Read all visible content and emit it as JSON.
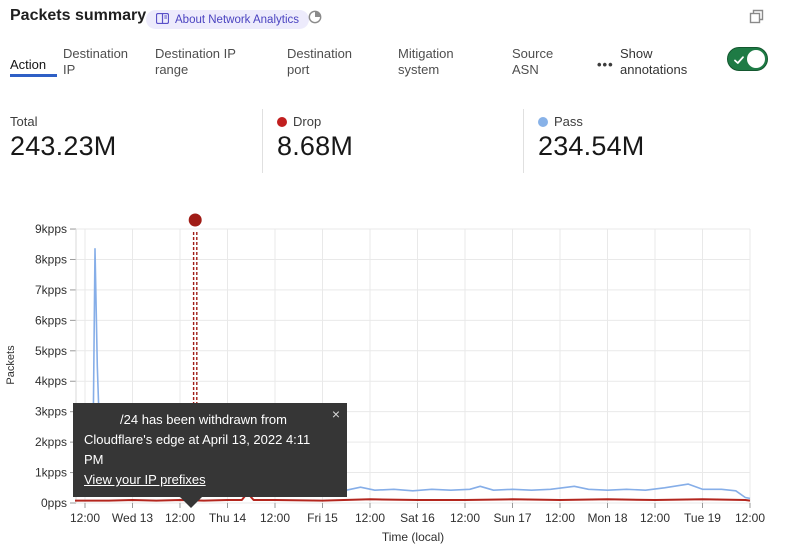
{
  "header": {
    "title": "Packets summary",
    "about_badge": "About Network Analytics"
  },
  "tabs": {
    "items": [
      {
        "label": "Action",
        "active": true
      },
      {
        "label": "Destination IP",
        "active": false
      },
      {
        "label": "Destination IP range",
        "active": false
      },
      {
        "label": "Destination port",
        "active": false
      },
      {
        "label": "Mitigation system",
        "active": false
      },
      {
        "label": "Source ASN",
        "active": false
      }
    ],
    "more_label": "•••"
  },
  "annotations_toggle": {
    "label": "Show annotations",
    "state": "on"
  },
  "stats": {
    "total": {
      "label": "Total",
      "value": "243.23M"
    },
    "drop": {
      "label": "Drop",
      "value": "8.68M",
      "dot_color": "#c11f1f"
    },
    "pass": {
      "label": "Pass",
      "value": "234.54M",
      "dot_color": "#88b2e8"
    }
  },
  "tooltip": {
    "line1": "/24 has been withdrawn from",
    "line2": "Cloudflare's edge at April 13, 2022 4:11 PM",
    "link_label": "View your IP prefixes",
    "close_label": "×"
  },
  "chart_data": {
    "type": "line",
    "xlabel": "Time (local)",
    "ylabel": "Packets",
    "x_ticks": [
      "12:00",
      "Wed 13",
      "12:00",
      "Thu 14",
      "12:00",
      "Fri 15",
      "12:00",
      "Sat 16",
      "12:00",
      "Sun 17",
      "12:00",
      "Mon 18",
      "12:00",
      "Tue 19",
      "12:00"
    ],
    "y_ticks": [
      "0pps",
      "1kpps",
      "2kpps",
      "3kpps",
      "4kpps",
      "5kpps",
      "6kpps",
      "7kpps",
      "8kpps",
      "9kpps"
    ],
    "ylim": [
      0,
      9
    ],
    "y_unit": "kpps",
    "grid": true,
    "series": [
      {
        "name": "Pass",
        "color": "#86aee8",
        "width": 1.6,
        "points": [
          [
            -0.21,
            0.3
          ],
          [
            0.1,
            0.32
          ],
          [
            0.16,
            0.5
          ],
          [
            0.21,
            8.35
          ],
          [
            0.26,
            4.5
          ],
          [
            0.33,
            1.2
          ],
          [
            0.45,
            0.55
          ],
          [
            0.8,
            0.42
          ],
          [
            1.2,
            0.42
          ],
          [
            1.42,
            0.65
          ],
          [
            1.55,
            0.5
          ],
          [
            1.65,
            0.68
          ],
          [
            1.8,
            0.45
          ],
          [
            2.1,
            0.42
          ],
          [
            2.32,
            0.45
          ],
          [
            2.6,
            0.4
          ],
          [
            3.0,
            0.42
          ],
          [
            3.4,
            0.45
          ],
          [
            3.7,
            0.4
          ],
          [
            4.0,
            0.62
          ],
          [
            4.25,
            0.45
          ],
          [
            4.7,
            0.4
          ],
          [
            5.1,
            0.45
          ],
          [
            5.5,
            0.42
          ],
          [
            5.8,
            0.52
          ],
          [
            6.1,
            0.42
          ],
          [
            6.5,
            0.45
          ],
          [
            6.9,
            0.4
          ],
          [
            7.3,
            0.45
          ],
          [
            7.7,
            0.42
          ],
          [
            8.1,
            0.45
          ],
          [
            8.32,
            0.55
          ],
          [
            8.6,
            0.42
          ],
          [
            9.0,
            0.45
          ],
          [
            9.4,
            0.42
          ],
          [
            9.8,
            0.45
          ],
          [
            10.3,
            0.55
          ],
          [
            10.6,
            0.45
          ],
          [
            11.0,
            0.42
          ],
          [
            11.4,
            0.45
          ],
          [
            11.8,
            0.42
          ],
          [
            12.2,
            0.5
          ],
          [
            12.7,
            0.62
          ],
          [
            13.0,
            0.45
          ],
          [
            13.4,
            0.45
          ],
          [
            13.7,
            0.4
          ],
          [
            13.9,
            0.18
          ],
          [
            14.0,
            0.15
          ]
        ]
      },
      {
        "name": "Drop",
        "color": "#b3261e",
        "width": 2,
        "points": [
          [
            -0.21,
            0.08
          ],
          [
            0.5,
            0.08
          ],
          [
            1.0,
            0.1
          ],
          [
            1.5,
            0.08
          ],
          [
            2.0,
            0.1
          ],
          [
            2.5,
            0.08
          ],
          [
            3.0,
            0.1
          ],
          [
            3.3,
            0.1
          ],
          [
            3.42,
            0.33
          ],
          [
            3.55,
            0.1
          ],
          [
            4.0,
            0.1
          ],
          [
            5.0,
            0.08
          ],
          [
            6.0,
            0.12
          ],
          [
            7.0,
            0.1
          ],
          [
            8.0,
            0.1
          ],
          [
            9.0,
            0.12
          ],
          [
            10.0,
            0.1
          ],
          [
            11.0,
            0.12
          ],
          [
            12.0,
            0.1
          ],
          [
            13.0,
            0.12
          ],
          [
            13.9,
            0.1
          ],
          [
            14.0,
            0.08
          ]
        ]
      }
    ],
    "annotation": {
      "x": 2.32,
      "color": "#a01c16",
      "label": "/24 has been withdrawn from Cloudflare's edge at April 13, 2022 4:11 PM"
    }
  },
  "colors": {
    "accent_blue": "#2e5fc5",
    "badge_bg": "#edebfc",
    "badge_text": "#4a43c0",
    "toggle_green": "#1e7b45",
    "tooltip_bg": "#363636",
    "grid": "#e9e9e9"
  }
}
